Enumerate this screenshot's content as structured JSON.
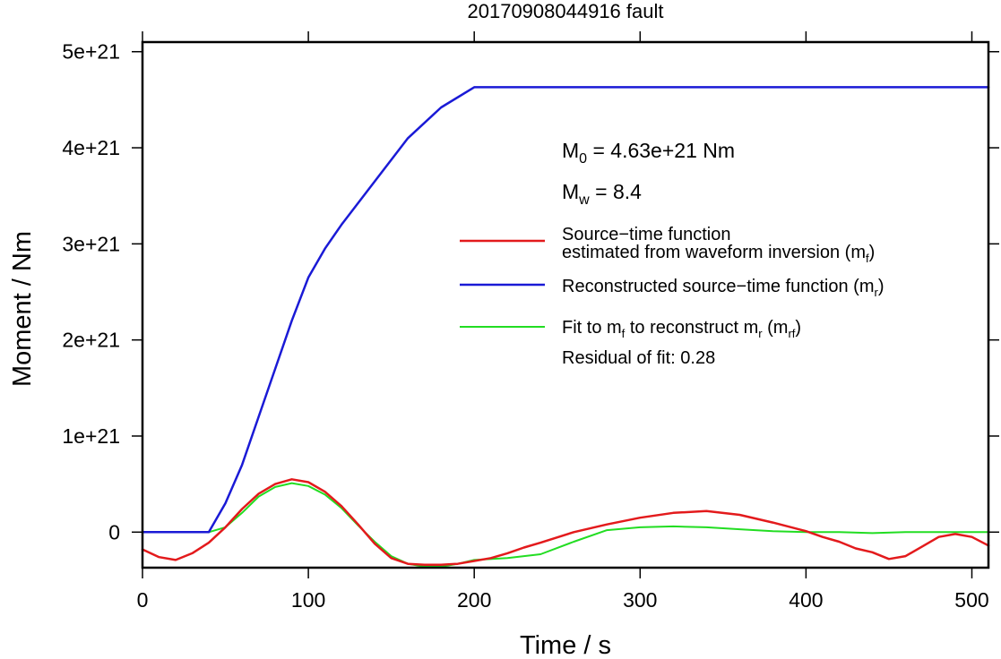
{
  "chart_data": {
    "type": "line",
    "title": "20170908044916 fault",
    "xlabel": "Time / s",
    "ylabel": "Moment / Nm",
    "xlim": [
      0,
      510
    ],
    "ylim": [
      -3.7e+20,
      5.1e+21
    ],
    "xticks": [
      0,
      100,
      200,
      300,
      400,
      500
    ],
    "xtick_labels": [
      "0",
      "100",
      "200",
      "300",
      "400",
      "500"
    ],
    "yticks": [
      0,
      1e+21,
      2e+21,
      3e+21,
      4e+21,
      5e+21
    ],
    "ytick_labels": [
      "0",
      "1e+21",
      "2e+21",
      "3e+21",
      "4e+21",
      "5e+21"
    ],
    "grid": false,
    "legend_position": "right, inside upper area",
    "annotations": {
      "m0": {
        "prefix": "M",
        "sub": "0",
        "text": " = 4.63e+21 Nm"
      },
      "mw": {
        "prefix": "M",
        "sub": "w",
        "text": " = 8.4"
      },
      "residual": "Residual of fit: 0.28"
    },
    "series": [
      {
        "key": "mf",
        "legend_line1": "Source−time function",
        "legend_line2": {
          "pre": "estimated from waveform inversion (m",
          "sub": "f",
          "post": ")"
        },
        "color": "#e31a1c",
        "x": [
          0,
          10,
          20,
          30,
          40,
          50,
          60,
          70,
          80,
          90,
          100,
          110,
          120,
          130,
          140,
          150,
          160,
          170,
          180,
          190,
          200,
          210,
          220,
          230,
          240,
          260,
          280,
          300,
          320,
          340,
          360,
          380,
          400,
          410,
          420,
          430,
          440,
          450,
          460,
          470,
          480,
          490,
          500,
          510
        ],
        "y": [
          -1.8e+20,
          -2.6e+20,
          -2.9e+20,
          -2.2e+20,
          -1.1e+20,
          5e+19,
          2.4e+20,
          4e+20,
          5e+20,
          5.5e+20,
          5.2e+20,
          4.2e+20,
          2.7e+20,
          8e+19,
          -1.2e+20,
          -2.7e+20,
          -3.3e+20,
          -3.4e+20,
          -3.4e+20,
          -3.3e+20,
          -3e+20,
          -2.7e+20,
          -2.2e+20,
          -1.6e+20,
          -1.1e+20,
          0,
          8e+19,
          1.5e+20,
          2e+20,
          2.2e+20,
          1.8e+20,
          1e+20,
          1e+19,
          -5e+19,
          -1e+20,
          -1.7e+20,
          -2.1e+20,
          -2.8e+20,
          -2.5e+20,
          -1.5e+20,
          -5e+19,
          -2e+19,
          -5e+19,
          -1.4e+20
        ]
      },
      {
        "key": "mr",
        "legend_line1": {
          "pre": "Reconstructed source−time function (m",
          "sub": "r",
          "post": ")"
        },
        "color": "#1a1ad6",
        "x": [
          0,
          40,
          50,
          60,
          70,
          80,
          90,
          100,
          110,
          120,
          140,
          160,
          180,
          200,
          510
        ],
        "y": [
          0,
          0,
          3e+20,
          7e+20,
          1.2e+21,
          1.7e+21,
          2.2e+21,
          2.65e+21,
          2.95e+21,
          3.2e+21,
          3.65e+21,
          4.1e+21,
          4.42e+21,
          4.63e+21,
          4.63e+21
        ]
      },
      {
        "key": "mrf",
        "legend_line1": {
          "pre": "Fit to m",
          "sub1": "f",
          "mid": " to reconstruct m",
          "sub2": "r",
          "mid2": " (m",
          "sub3": "rf",
          "post": ")"
        },
        "color": "#22dd22",
        "x": [
          0,
          40,
          50,
          60,
          70,
          80,
          90,
          100,
          110,
          120,
          130,
          140,
          150,
          160,
          170,
          180,
          190,
          200,
          220,
          240,
          260,
          280,
          300,
          320,
          340,
          360,
          380,
          400,
          420,
          440,
          460,
          480,
          500,
          510
        ],
        "y": [
          0,
          0,
          5e+19,
          2e+20,
          3.7e+20,
          4.7e+20,
          5.1e+20,
          4.8e+20,
          3.9e+20,
          2.5e+20,
          7e+19,
          -1e+20,
          -2.5e+20,
          -3.3e+20,
          -3.6e+20,
          -3.6e+20,
          -3.3e+20,
          -2.9e+20,
          -2.7e+20,
          -2.3e+20,
          -1e+20,
          2e+19,
          5e+19,
          6e+19,
          5e+19,
          3e+19,
          1e+19,
          0,
          0,
          -1e+19,
          0,
          0,
          0,
          0
        ]
      }
    ]
  }
}
